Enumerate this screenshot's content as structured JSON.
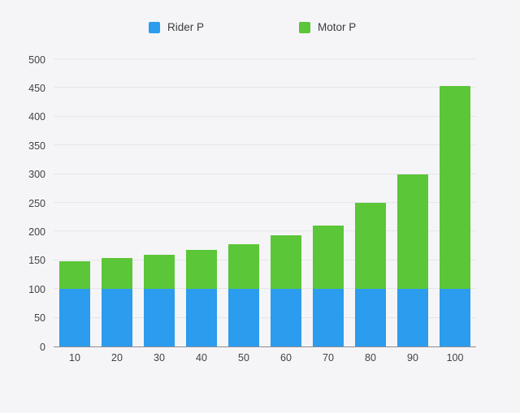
{
  "colors": {
    "background": "#f5f5f7",
    "rider_blue": "#2B9CEE",
    "motor_green": "#5BC638",
    "gridline": "#e6e6e8",
    "axis_line": "#8e8e93",
    "tick_text": "#424245"
  },
  "chart_data": {
    "type": "bar",
    "stacked": true,
    "title": "",
    "xlabel": "",
    "ylabel": "",
    "categories": [
      "10",
      "20",
      "30",
      "40",
      "50",
      "60",
      "70",
      "80",
      "90",
      "100"
    ],
    "series": [
      {
        "name": "Rider P",
        "color": "#2B9CEE",
        "values": [
          100,
          100,
          100,
          100,
          100,
          100,
          100,
          100,
          100,
          100
        ]
      },
      {
        "name": "Motor P",
        "color": "#5BC638",
        "values": [
          48,
          54,
          60,
          68,
          78,
          94,
          111,
          150,
          199,
          353
        ]
      }
    ],
    "stack_totals": [
      148,
      154,
      160,
      168,
      178,
      194,
      211,
      250,
      299,
      453
    ],
    "ylim": [
      0,
      500
    ],
    "ytick_step": 50,
    "ytick_labels": [
      "0",
      "50",
      "100",
      "150",
      "200",
      "250",
      "300",
      "350",
      "400",
      "450",
      "500"
    ],
    "grid": true,
    "legend_position": "top"
  }
}
